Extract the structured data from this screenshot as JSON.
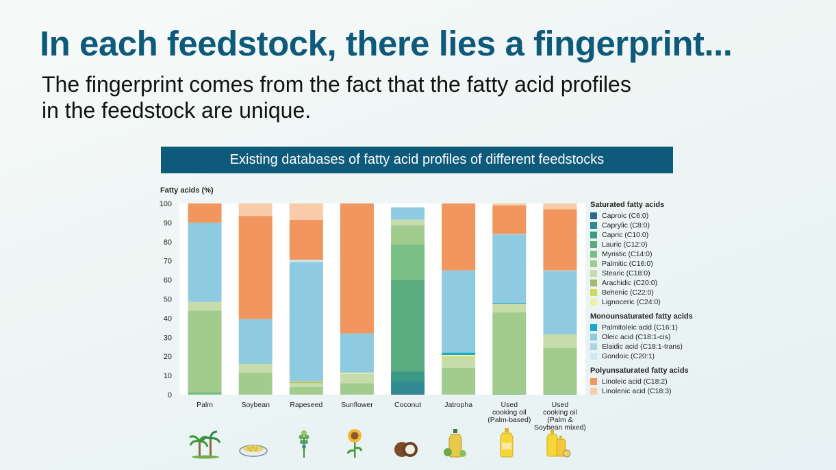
{
  "header": {
    "title": "In each feedstock, there lies a fingerprint...",
    "subtitle_line1": "The fingerprint comes from the fact that the fatty acid profiles",
    "subtitle_line2": "in the feedstock are unique."
  },
  "chart_banner": "Existing databases of fatty acid profiles of different feedstocks",
  "chart_data": {
    "type": "bar",
    "stacked": true,
    "ylabel": "Fatty acids (%)",
    "ylim": [
      0,
      100
    ],
    "yticks": [
      0,
      10,
      20,
      30,
      40,
      50,
      60,
      70,
      80,
      90,
      100
    ],
    "grid": false,
    "legend_placement": "right",
    "categories": [
      [
        "Palm"
      ],
      [
        "Soybean"
      ],
      [
        "Rapeseed"
      ],
      [
        "Sunflower"
      ],
      [
        "Coconut"
      ],
      [
        "Jatropha"
      ],
      [
        "Used",
        "cooking oil",
        "(Palm-based)"
      ],
      [
        "Used",
        "cooking oil",
        "(Palm &",
        "Soybean mixed)"
      ]
    ],
    "series": [
      {
        "name": "Caproic (C6:0)",
        "color": "#2a6a86",
        "values": [
          0,
          0,
          0,
          0,
          0.5,
          0,
          0,
          0
        ]
      },
      {
        "name": "Caprylic (C8:0)",
        "color": "#2f8a92",
        "values": [
          0,
          0,
          0,
          0,
          6.5,
          0,
          0,
          0
        ]
      },
      {
        "name": "Capric (C10:0)",
        "color": "#3a9a86",
        "values": [
          0,
          0,
          0,
          0,
          5,
          0,
          0,
          0
        ]
      },
      {
        "name": "Lauric (C12:0)",
        "color": "#5aab80",
        "values": [
          0.3,
          0,
          0,
          0,
          48,
          0,
          0,
          0
        ]
      },
      {
        "name": "Myristic (C14:0)",
        "color": "#7abf84",
        "values": [
          1.1,
          0,
          0,
          0,
          18.5,
          0,
          0.5,
          0.5
        ]
      },
      {
        "name": "Palmitic (C16:0)",
        "color": "#a2cc8e",
        "values": [
          42.6,
          11.5,
          4,
          6,
          10,
          14,
          42.5,
          24
        ]
      },
      {
        "name": "Stearic (C18:0)",
        "color": "#c6dcaa",
        "values": [
          4.5,
          4.5,
          2,
          5,
          3,
          5.5,
          4.5,
          7
        ]
      },
      {
        "name": "Arachidic (C20:0)",
        "color": "#a9b96a",
        "values": [
          0,
          0,
          0.5,
          0,
          0,
          0,
          0,
          0
        ]
      },
      {
        "name": "Behenic (C22:0)",
        "color": "#d2d85a",
        "values": [
          0,
          0,
          0.5,
          0,
          0,
          0.5,
          0,
          0
        ]
      },
      {
        "name": "Lignoceric (C24:0)",
        "color": "#eef0a6",
        "values": [
          0,
          0,
          0,
          0.5,
          0,
          0.8,
          0,
          0
        ]
      },
      {
        "name": "Palmitoleic acid (C16:1)",
        "color": "#19a9cc",
        "values": [
          0,
          0,
          0,
          0,
          0,
          1.2,
          0.5,
          0
        ]
      },
      {
        "name": "Oleic acid (C18:1-cis)",
        "color": "#8fcbe0",
        "values": [
          41.5,
          23.5,
          62.5,
          20.5,
          6.5,
          43,
          35.5,
          33
        ]
      },
      {
        "name": "Elaidic acid (C18:1-trans)",
        "color": "#aad6e8",
        "values": [
          0,
          0,
          0,
          0,
          0,
          0,
          0.5,
          0.5
        ]
      },
      {
        "name": "Gondoic (C20:1)",
        "color": "#cfe8f1",
        "values": [
          0,
          0,
          1,
          0,
          0,
          0,
          0,
          0
        ]
      },
      {
        "name": "Linoleic acid (C18:2)",
        "color": "#f0965e",
        "values": [
          10,
          54,
          21,
          68,
          0,
          35,
          15,
          32
        ]
      },
      {
        "name": "Linolenic acid (C18:3)",
        "color": "#f8ccaa",
        "values": [
          0,
          6.5,
          8.5,
          0,
          0,
          0,
          1,
          3
        ]
      }
    ],
    "legend_groups": [
      {
        "title": "Saturated fatty acids",
        "series_index": [
          0,
          1,
          2,
          3,
          4,
          5,
          6,
          7,
          8,
          9
        ]
      },
      {
        "title": "Monounsaturated fatty acids",
        "series_index": [
          10,
          11,
          12,
          13
        ]
      },
      {
        "title": "Polyunsaturated fatty acids",
        "series_index": [
          14,
          15
        ]
      }
    ]
  },
  "icons": [
    {
      "name": "palm-tree-icon"
    },
    {
      "name": "soybean-bowl-icon"
    },
    {
      "name": "rapeseed-plant-icon"
    },
    {
      "name": "sunflower-icon"
    },
    {
      "name": "coconut-icon"
    },
    {
      "name": "jatropha-oil-icon"
    },
    {
      "name": "cooking-oil-bottle-icon"
    },
    {
      "name": "mixed-oil-bottles-icon"
    }
  ]
}
